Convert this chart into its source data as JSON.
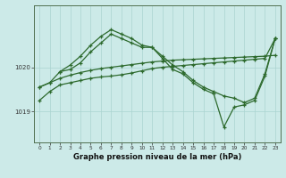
{
  "bg_color": "#cceae8",
  "line_color": "#2d6a2d",
  "grid_color": "#aad4d0",
  "xlabel": "Graphe pression niveau de la mer (hPa)",
  "xlabel_fontsize": 6.0,
  "ytick_values": [
    1019,
    1020
  ],
  "ytick_labels": [
    "1019",
    "1020"
  ],
  "ylim": [
    1018.3,
    1021.4
  ],
  "xlim": [
    -0.5,
    23.5
  ],
  "series": [
    {
      "x": [
        0,
        1,
        2,
        3,
        4,
        5,
        6,
        7,
        8,
        9,
        10,
        11,
        12,
        13,
        14,
        15,
        16,
        17,
        18,
        19,
        20,
        21,
        22,
        23
      ],
      "y": [
        1019.55,
        1019.65,
        1019.75,
        1019.82,
        1019.88,
        1019.93,
        1019.97,
        1020.0,
        1020.03,
        1020.06,
        1020.09,
        1020.12,
        1020.14,
        1020.16,
        1020.17,
        1020.18,
        1020.19,
        1020.2,
        1020.21,
        1020.22,
        1020.23,
        1020.24,
        1020.25,
        1020.27
      ]
    },
    {
      "x": [
        0,
        1,
        2,
        3,
        4,
        5,
        6,
        7,
        8,
        9,
        10,
        11,
        12,
        13,
        14,
        15,
        16,
        17,
        18,
        19,
        20,
        21,
        22,
        23
      ],
      "y": [
        1019.55,
        1019.65,
        1019.9,
        1020.05,
        1020.25,
        1020.5,
        1020.7,
        1020.85,
        1020.75,
        1020.65,
        1020.5,
        1020.45,
        1020.2,
        1019.95,
        1019.85,
        1019.65,
        1019.5,
        1019.4,
        1018.65,
        1019.1,
        1019.15,
        1019.25,
        1019.8,
        1020.65
      ]
    },
    {
      "x": [
        2,
        3,
        4,
        5,
        6,
        7,
        8,
        9,
        10,
        11,
        12,
        13,
        14,
        15,
        16,
        17,
        18,
        19,
        20,
        21,
        22,
        23
      ],
      "y": [
        1019.9,
        1019.95,
        1020.1,
        1020.35,
        1020.55,
        1020.75,
        1020.65,
        1020.55,
        1020.45,
        1020.45,
        1020.25,
        1020.05,
        1019.9,
        1019.7,
        1019.55,
        1019.45,
        1019.35,
        1019.3,
        1019.2,
        1019.3,
        1019.85,
        1020.65
      ]
    },
    {
      "x": [
        0,
        1,
        2,
        3,
        4,
        5,
        6,
        7,
        8,
        9,
        10,
        11,
        12,
        13,
        14,
        15,
        16,
        17,
        18,
        19,
        20,
        21,
        22,
        23
      ],
      "y": [
        1019.25,
        1019.45,
        1019.6,
        1019.65,
        1019.7,
        1019.75,
        1019.78,
        1019.8,
        1019.83,
        1019.87,
        1019.92,
        1019.97,
        1020.0,
        1020.02,
        1020.04,
        1020.06,
        1020.08,
        1020.1,
        1020.12,
        1020.14,
        1020.16,
        1020.18,
        1020.2,
        1020.65
      ]
    }
  ]
}
